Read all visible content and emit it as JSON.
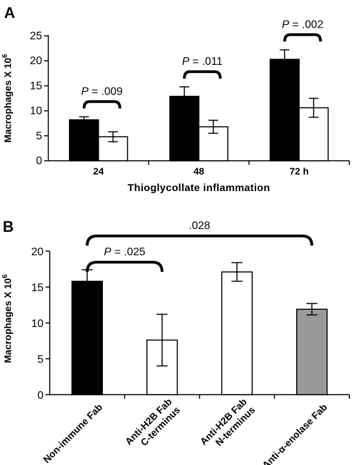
{
  "figure": {
    "panels": [
      "A",
      "B"
    ]
  },
  "chart_data": [
    {
      "type": "bar",
      "panel": "A",
      "title": "",
      "xlabel": "Thioglycollate inflammation",
      "ylabel": "Macrophages X 10",
      "ylabel_superscript": "6",
      "ylim": [
        0,
        25
      ],
      "yticks": [
        0,
        5,
        10,
        15,
        20,
        25
      ],
      "categories": [
        "24",
        "48",
        "72 h"
      ],
      "series": [
        {
          "values": [
            8.2,
            12.9,
            20.3
          ],
          "errors": [
            0.6,
            1.9,
            1.9
          ],
          "color": "#000000"
        },
        {
          "values": [
            4.8,
            6.8,
            10.6
          ],
          "errors": [
            1.0,
            1.3,
            1.9
          ],
          "color": "#ffffff"
        }
      ],
      "annotations": [
        {
          "category": 0,
          "text_prefix": "P",
          "text": " = .009"
        },
        {
          "category": 1,
          "text_prefix": "P",
          "text": " = .011"
        },
        {
          "category": 2,
          "text_prefix": "P",
          "text": " = .002"
        }
      ],
      "grid": false
    },
    {
      "type": "bar",
      "panel": "B",
      "title": "",
      "xlabel": "",
      "ylabel": "Macrophages X 10",
      "ylabel_superscript": "6",
      "ylim": [
        0,
        20
      ],
      "yticks": [
        0,
        5,
        10,
        15,
        20
      ],
      "categories": [
        [
          "Non-immune Fab"
        ],
        [
          "Anti-H2B Fab",
          "C-terminus"
        ],
        [
          "Anti-H2B Fab",
          "N-terminus"
        ],
        [
          "Anti-α-enolase Fab"
        ]
      ],
      "values": [
        15.8,
        7.6,
        17.1,
        11.9
      ],
      "errors": [
        1.6,
        3.6,
        1.3,
        0.8
      ],
      "colors": [
        "#000000",
        "#ffffff",
        "#ffffff",
        "#9a9a9a"
      ],
      "annotations": [
        {
          "from": 0,
          "to": 1,
          "text_prefix": "P",
          "text": " = .025"
        },
        {
          "from": 0,
          "to": 3,
          "text_prefix": "",
          "text": ".028"
        }
      ],
      "grid": false
    }
  ]
}
